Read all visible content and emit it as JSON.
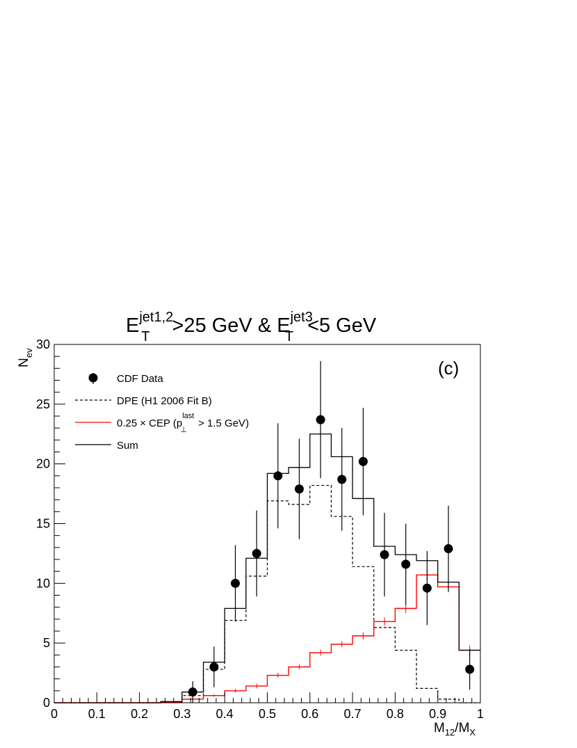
{
  "chart_data": {
    "type": "step-histogram",
    "title": {
      "base1": "E",
      "sup1": "jet1,2",
      "sub1": "T",
      "mid": ">25 GeV & ",
      "base2": "E",
      "sup2": "jet3",
      "sub2": "T",
      "end": "<5 GeV"
    },
    "panel_label": "(c)",
    "xlabel": {
      "main": "M",
      "sub1": "12",
      "slash": "/M",
      "sub2": "X"
    },
    "ylabel": {
      "main": "N",
      "sub": "ev"
    },
    "xlim": [
      0,
      1
    ],
    "ylim": [
      0,
      30
    ],
    "xticks": [
      "0",
      "0.1",
      "0.2",
      "0.3",
      "0.4",
      "0.5",
      "0.6",
      "0.7",
      "0.8",
      "0.9",
      "1"
    ],
    "yticks": [
      "0",
      "5",
      "10",
      "15",
      "20",
      "25",
      "30"
    ],
    "bin_edges": [
      0,
      0.05,
      0.1,
      0.15,
      0.2,
      0.25,
      0.3,
      0.35,
      0.4,
      0.45,
      0.5,
      0.55,
      0.6,
      0.65,
      0.7,
      0.75,
      0.8,
      0.85,
      0.9,
      0.95,
      1.0
    ],
    "legend": {
      "position": "top-left",
      "entries": [
        {
          "key": "data",
          "label": "CDF Data"
        },
        {
          "key": "dpe",
          "label": "DPE (H1 2006 Fit B)"
        },
        {
          "key": "cep",
          "label_pre": "0.25",
          "label_times": "×",
          "label_mid": " CEP (p",
          "label_sup": "last",
          "label_sub": "⊥",
          "label_post": " > 1.5 GeV)"
        },
        {
          "key": "sum",
          "label": "Sum"
        }
      ]
    },
    "series": [
      {
        "key": "dpe",
        "name": "DPE (H1 2006 Fit B)",
        "style": "dashed",
        "color": "#000000",
        "values": [
          0,
          0,
          0,
          0,
          0,
          0.05,
          0.6,
          2.8,
          6.9,
          10.6,
          16.9,
          16.6,
          18.2,
          15.6,
          11.4,
          6.3,
          4.4,
          1.2,
          0.3,
          0
        ]
      },
      {
        "key": "cep",
        "name": "0.25 × CEP",
        "style": "solid",
        "color": "#ff0000",
        "values": [
          0,
          0,
          0,
          0,
          0,
          0.05,
          0.3,
          0.6,
          1.0,
          1.4,
          2.3,
          3.0,
          4.2,
          4.9,
          5.6,
          6.8,
          7.9,
          10.7,
          9.7,
          4.4
        ],
        "errors": [
          0,
          0,
          0,
          0,
          0,
          0,
          0.1,
          0.1,
          0.15,
          0.2,
          0.2,
          0.2,
          0.25,
          0.25,
          0.3,
          0.35,
          0.4,
          0.45,
          0.45,
          0.4
        ]
      },
      {
        "key": "sum",
        "name": "Sum",
        "style": "solid",
        "color": "#000000",
        "values": [
          0,
          0,
          0,
          0,
          0,
          0.1,
          0.9,
          3.4,
          7.9,
          12.1,
          19.2,
          19.7,
          22.5,
          20.6,
          17.1,
          13.1,
          12.4,
          11.9,
          10.1,
          4.4
        ]
      },
      {
        "key": "data",
        "name": "CDF Data",
        "style": "markers",
        "color": "#000000",
        "x": [
          0.325,
          0.375,
          0.425,
          0.475,
          0.525,
          0.575,
          0.625,
          0.675,
          0.725,
          0.775,
          0.825,
          0.875,
          0.925,
          0.975
        ],
        "y": [
          0.9,
          3.0,
          10.0,
          12.5,
          19.0,
          17.9,
          23.7,
          18.7,
          20.2,
          12.4,
          11.6,
          9.6,
          12.9,
          2.8
        ],
        "err": [
          0.9,
          1.7,
          3.2,
          3.6,
          4.4,
          4.2,
          4.9,
          4.3,
          4.5,
          3.5,
          3.4,
          3.1,
          3.6,
          1.7
        ]
      }
    ]
  }
}
